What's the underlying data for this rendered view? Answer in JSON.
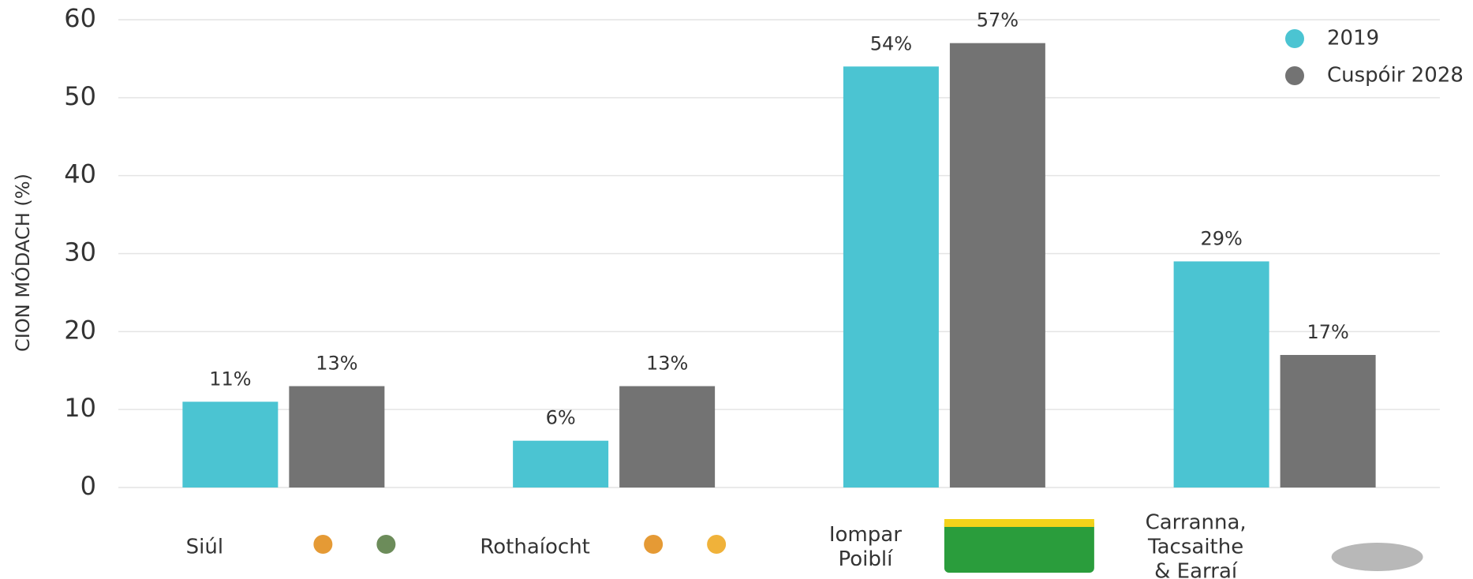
{
  "chart_data": {
    "type": "bar",
    "y_label": "CION MÓDACH (%)",
    "categories": [
      "Siúl",
      "Rothaíocht",
      "Iompar\nPoiblí",
      "Carranna,\nTacsaithe\n& Earraí"
    ],
    "series": [
      {
        "name": "2019",
        "color": "#4bc4d2",
        "values": [
          11,
          6,
          54,
          29
        ],
        "value_labels": [
          "11%",
          "6%",
          "54%",
          "29%"
        ]
      },
      {
        "name": "Cuspóir 2028",
        "color": "#737373",
        "values": [
          13,
          13,
          57,
          17
        ],
        "value_labels": [
          "13%",
          "13%",
          "57%",
          "17%"
        ]
      }
    ],
    "ylim": [
      0,
      60
    ],
    "yticks": [
      0,
      10,
      20,
      30,
      40,
      50,
      60
    ],
    "grid": true,
    "legend": "top-right"
  }
}
